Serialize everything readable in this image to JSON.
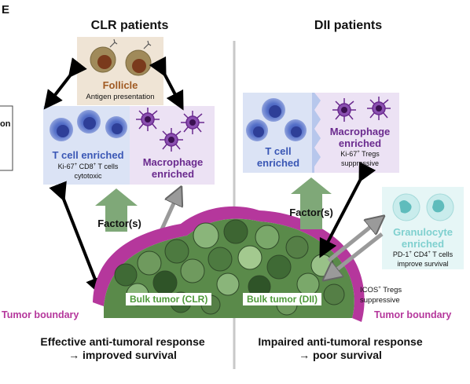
{
  "panel_letter": "E",
  "left": {
    "heading": "CLR patients",
    "follicle_title": "Follicle",
    "follicle_sub": "Antigen presentation",
    "tcell_title": "T cell enriched",
    "tcell_sub1": "Ki-67",
    "tcell_sup1": "+",
    "tcell_sub2": " CD8",
    "tcell_sup2": "+",
    "tcell_sub3": " T cells",
    "tcell_sub4": "cytotoxic",
    "macro_title1": "Macrophage",
    "macro_title2": "enriched",
    "factor": "Factor(s)",
    "bulk": "Bulk tumor (CLR)",
    "boundary": "Tumor boundary",
    "response1": "Effective anti-tumoral response",
    "response2": "→ improved survival"
  },
  "right": {
    "heading": "DII patients",
    "tcell_title1": "T cell",
    "tcell_title2": "enriched",
    "macro_title1": "Macrophage",
    "macro_title2": "enriched",
    "macro_sub1": "Ki-67",
    "macro_sup1": "+",
    "macro_sub2": " Tregs",
    "macro_sub3": "suppressive",
    "factor": "Factor(s)",
    "gran_title1": "Granulocyte",
    "gran_title2": "enriched",
    "gran_sub1": "PD-1",
    "gran_sup1": "+",
    "gran_sub2": " CD4",
    "gran_sup2": "+",
    "gran_sub3": " T cells",
    "gran_sub4": "improve survival",
    "icos1": "ICOS",
    "icos_sup": "+",
    "icos2": " Tregs",
    "icos3": "suppressive",
    "bulk": "Bulk tumor (DII)",
    "boundary": "Tumor boundary",
    "response1": "Impaired anti-tumoral response",
    "response2": "→ poor survival"
  },
  "edge_fragment": "on",
  "colors": {
    "tumor_boundary": "#b5379c",
    "tcell_text": "#3a57b5",
    "macro_text": "#6a2a8e",
    "follicle_text": "#a05a23",
    "gran_text": "#7fd0cf",
    "bulk_text": "#4f9a3b",
    "factor_arrow": "#7fa878"
  }
}
